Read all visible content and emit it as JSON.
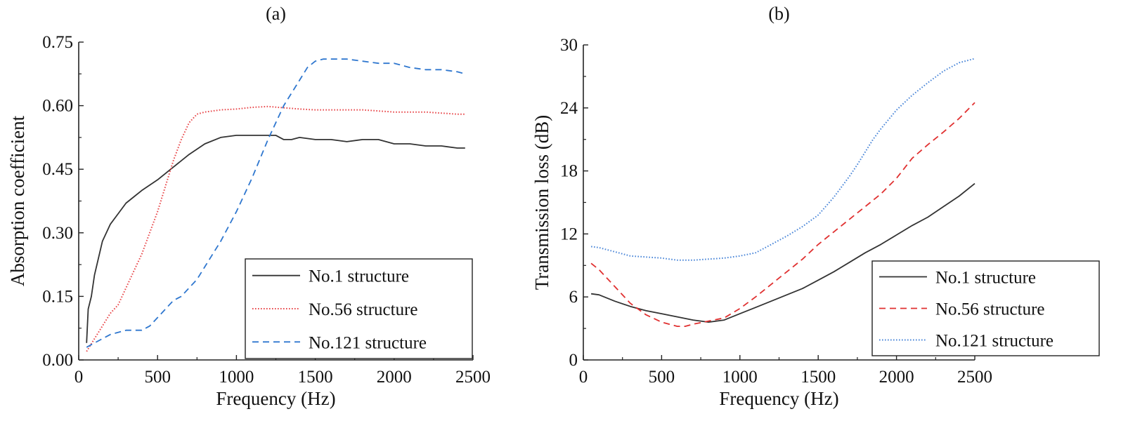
{
  "chart_data": [
    {
      "type": "line",
      "panel_label": "(a)",
      "title": "",
      "xlabel": "Frequency (Hz)",
      "ylabel": "Absorption coefficient",
      "xlim": [
        0,
        2500
      ],
      "ylim": [
        0,
        0.75
      ],
      "xticks": [
        0,
        500,
        1000,
        1500,
        2000,
        2500
      ],
      "xtick_labels": [
        "0",
        "500",
        "1000",
        "1500",
        "2000",
        "2500"
      ],
      "yticks": [
        0,
        0.15,
        0.3,
        0.45,
        0.6,
        0.75
      ],
      "ytick_labels": [
        "0.00",
        "0.15",
        "0.30",
        "0.45",
        "0.60",
        "0.75"
      ],
      "grid": false,
      "legend_position": "bottom-right",
      "series": [
        {
          "name": "No.1 structure",
          "color": "#333333",
          "style": "solid",
          "x": [
            50,
            60,
            80,
            100,
            150,
            200,
            250,
            300,
            350,
            400,
            500,
            600,
            700,
            800,
            900,
            1000,
            1100,
            1200,
            1250,
            1300,
            1350,
            1400,
            1500,
            1600,
            1700,
            1800,
            1900,
            2000,
            2100,
            2200,
            2300,
            2400,
            2450
          ],
          "y": [
            0.04,
            0.12,
            0.15,
            0.2,
            0.28,
            0.32,
            0.345,
            0.37,
            0.385,
            0.4,
            0.425,
            0.455,
            0.485,
            0.51,
            0.525,
            0.53,
            0.53,
            0.53,
            0.53,
            0.52,
            0.52,
            0.525,
            0.52,
            0.52,
            0.515,
            0.52,
            0.52,
            0.51,
            0.51,
            0.505,
            0.505,
            0.5,
            0.5
          ]
        },
        {
          "name": "No.56 structure",
          "color": "#e8474a",
          "style": "dotted",
          "x": [
            50,
            100,
            150,
            200,
            250,
            300,
            350,
            400,
            450,
            500,
            550,
            600,
            650,
            700,
            750,
            800,
            900,
            1000,
            1100,
            1200,
            1300,
            1400,
            1500,
            1600,
            1800,
            2000,
            2200,
            2400,
            2450
          ],
          "y": [
            0.02,
            0.05,
            0.08,
            0.11,
            0.13,
            0.17,
            0.21,
            0.25,
            0.3,
            0.35,
            0.41,
            0.47,
            0.52,
            0.56,
            0.58,
            0.585,
            0.59,
            0.592,
            0.596,
            0.598,
            0.595,
            0.592,
            0.59,
            0.59,
            0.59,
            0.585,
            0.585,
            0.58,
            0.58
          ]
        },
        {
          "name": "No.121 structure",
          "color": "#2f77cf",
          "style": "dashed",
          "x": [
            50,
            100,
            200,
            300,
            400,
            450,
            500,
            550,
            600,
            650,
            700,
            750,
            800,
            900,
            1000,
            1100,
            1200,
            1300,
            1400,
            1450,
            1500,
            1550,
            1600,
            1700,
            1800,
            1900,
            2000,
            2100,
            2200,
            2300,
            2400,
            2450
          ],
          "y": [
            0.03,
            0.04,
            0.06,
            0.07,
            0.07,
            0.08,
            0.1,
            0.12,
            0.14,
            0.15,
            0.17,
            0.19,
            0.22,
            0.28,
            0.35,
            0.43,
            0.52,
            0.6,
            0.66,
            0.69,
            0.705,
            0.71,
            0.71,
            0.71,
            0.705,
            0.7,
            0.7,
            0.69,
            0.685,
            0.685,
            0.68,
            0.675
          ]
        }
      ]
    },
    {
      "type": "line",
      "panel_label": "(b)",
      "title": "",
      "xlabel": "Frequency (Hz)",
      "ylabel": "Transmission loss (dB)",
      "xlim": [
        0,
        2500
      ],
      "ylim": [
        0,
        30
      ],
      "xticks": [
        0,
        500,
        1000,
        1500,
        2000,
        2500
      ],
      "xtick_labels": [
        "0",
        "500",
        "1000",
        "1500",
        "2000",
        "2500"
      ],
      "yticks": [
        0,
        6,
        12,
        18,
        24,
        30
      ],
      "ytick_labels": [
        "0",
        "6",
        "12",
        "18",
        "24",
        "30"
      ],
      "grid": false,
      "legend_position": "bottom-right",
      "series": [
        {
          "name": "No.1 structure",
          "color": "#333333",
          "style": "solid",
          "x": [
            50,
            100,
            200,
            300,
            400,
            500,
            600,
            700,
            800,
            850,
            900,
            1000,
            1100,
            1200,
            1300,
            1400,
            1500,
            1600,
            1700,
            1800,
            1900,
            2000,
            2100,
            2200,
            2300,
            2400,
            2500
          ],
          "y": [
            6.3,
            6.2,
            5.6,
            5.1,
            4.7,
            4.4,
            4.1,
            3.8,
            3.6,
            3.7,
            3.8,
            4.4,
            5.0,
            5.6,
            6.2,
            6.8,
            7.6,
            8.4,
            9.3,
            10.2,
            11.0,
            11.9,
            12.8,
            13.6,
            14.6,
            15.6,
            16.8
          ]
        },
        {
          "name": "No.56 structure",
          "color": "#e03030",
          "style": "dashed",
          "x": [
            50,
            100,
            200,
            300,
            400,
            500,
            600,
            650,
            700,
            800,
            900,
            1000,
            1100,
            1200,
            1300,
            1400,
            1500,
            1600,
            1700,
            1800,
            1900,
            2000,
            2100,
            2200,
            2300,
            2400,
            2500
          ],
          "y": [
            9.2,
            8.6,
            7.0,
            5.4,
            4.3,
            3.6,
            3.2,
            3.2,
            3.4,
            3.7,
            4.0,
            4.9,
            6.0,
            7.2,
            8.4,
            9.6,
            11.0,
            12.2,
            13.4,
            14.6,
            15.8,
            17.3,
            19.2,
            20.5,
            21.7,
            23.0,
            24.5
          ]
        },
        {
          "name": "No.121 structure",
          "color": "#4a86d8",
          "style": "dotted",
          "x": [
            50,
            100,
            200,
            300,
            400,
            500,
            600,
            700,
            800,
            900,
            1000,
            1100,
            1200,
            1300,
            1400,
            1500,
            1600,
            1700,
            1750,
            1800,
            1850,
            1900,
            2000,
            2100,
            2200,
            2300,
            2400,
            2500
          ],
          "y": [
            10.8,
            10.7,
            10.3,
            9.9,
            9.8,
            9.7,
            9.5,
            9.5,
            9.6,
            9.7,
            9.9,
            10.2,
            11.0,
            11.8,
            12.7,
            13.8,
            15.5,
            17.5,
            18.6,
            19.8,
            21.0,
            22.0,
            23.8,
            25.2,
            26.4,
            27.5,
            28.3,
            28.7
          ]
        }
      ]
    }
  ]
}
